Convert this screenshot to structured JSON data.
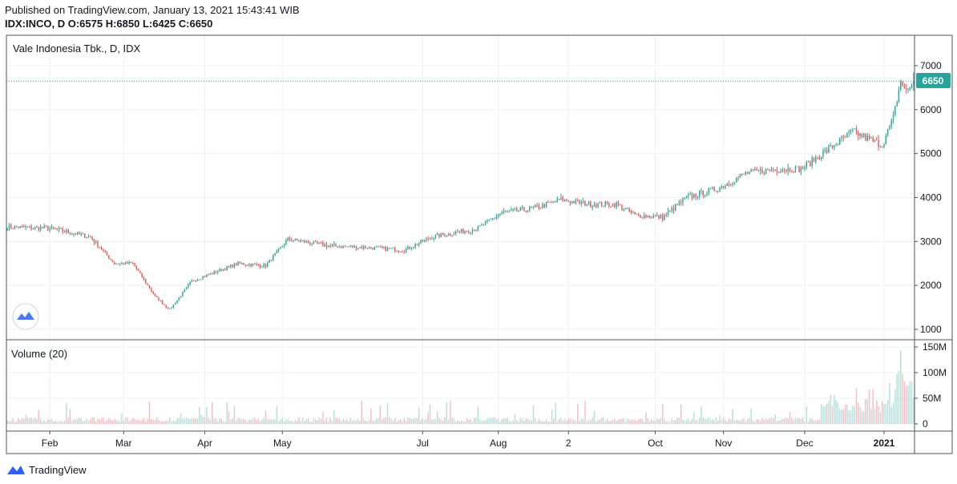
{
  "header": {
    "published": "Published on TradingView.com, January 13, 2021 15:43:41 WIB",
    "ohlc": "IDX:INCO, D  O:6575  H:6850  L:6425  C:6650"
  },
  "footer": {
    "brand": "TradingView"
  },
  "colors": {
    "up": "#26a69a",
    "down": "#ef5350",
    "up_vol": "#b2dfdb",
    "down_vol": "#f8bbc0",
    "grid": "#eef0f3",
    "border": "#50535e",
    "price_line": "#26a69a"
  },
  "chart_data": {
    "type": "candlestick",
    "title": "Vale Indonesia Tbk., D, IDX",
    "volume_title": "Volume (20)",
    "price_axis": {
      "min": 1000,
      "max": 7000,
      "ticks": [
        1000,
        2000,
        3000,
        4000,
        5000,
        6000,
        7000
      ]
    },
    "volume_axis": {
      "ticks": [
        0,
        50,
        100,
        150
      ],
      "labels": [
        "0",
        "50M",
        "100M",
        "150M"
      ],
      "unit": "M"
    },
    "last_price": 6650,
    "last_price_label": "6650",
    "time_labels": [
      "Feb",
      "Mar",
      "Apr",
      "May",
      "Jul",
      "Aug",
      "2",
      "Oct",
      "Nov",
      "Dec",
      "2021"
    ],
    "time_label_days": [
      23,
      63,
      107,
      149,
      225,
      266,
      304,
      351,
      388,
      432,
      475
    ],
    "key_closes": [
      {
        "day": 0,
        "close": 3330
      },
      {
        "day": 23,
        "close": 3300
      },
      {
        "day": 45,
        "close": 3100
      },
      {
        "day": 58,
        "close": 2500
      },
      {
        "day": 68,
        "close": 2500
      },
      {
        "day": 80,
        "close": 1750
      },
      {
        "day": 88,
        "close": 1450
      },
      {
        "day": 100,
        "close": 2100
      },
      {
        "day": 125,
        "close": 2500
      },
      {
        "day": 140,
        "close": 2450
      },
      {
        "day": 152,
        "close": 3050
      },
      {
        "day": 175,
        "close": 2900
      },
      {
        "day": 200,
        "close": 2850
      },
      {
        "day": 215,
        "close": 2800
      },
      {
        "day": 230,
        "close": 3100
      },
      {
        "day": 255,
        "close": 3300
      },
      {
        "day": 268,
        "close": 3650
      },
      {
        "day": 285,
        "close": 3750
      },
      {
        "day": 300,
        "close": 3950
      },
      {
        "day": 315,
        "close": 3850
      },
      {
        "day": 330,
        "close": 3850
      },
      {
        "day": 340,
        "close": 3600
      },
      {
        "day": 355,
        "close": 3550
      },
      {
        "day": 368,
        "close": 4000
      },
      {
        "day": 385,
        "close": 4200
      },
      {
        "day": 400,
        "close": 4550
      },
      {
        "day": 418,
        "close": 4650
      },
      {
        "day": 430,
        "close": 4650
      },
      {
        "day": 445,
        "close": 5100
      },
      {
        "day": 458,
        "close": 5500
      },
      {
        "day": 468,
        "close": 5300
      },
      {
        "day": 474,
        "close": 5200
      },
      {
        "day": 480,
        "close": 5800
      },
      {
        "day": 484,
        "close": 6650
      },
      {
        "day": 487,
        "close": 6400
      },
      {
        "day": 491,
        "close": 6650
      }
    ],
    "last_candle": {
      "open": 6575,
      "high": 6850,
      "low": 6425,
      "close": 6650
    }
  }
}
